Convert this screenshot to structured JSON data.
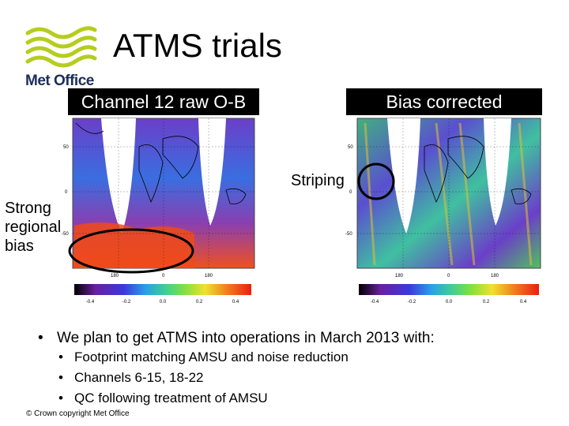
{
  "title": "ATMS trials",
  "logo": {
    "text": "Met Office"
  },
  "panels": {
    "left_label": "Channel 12 raw O-B",
    "right_label": "Bias corrected"
  },
  "map": {
    "lat_labels": [
      "50",
      "0",
      "-50"
    ],
    "lon_labels": [
      "180",
      "0",
      "180"
    ],
    "colorbar_ticks": [
      "-0.4",
      "-0.2",
      "0.0",
      "0.2",
      "0.4"
    ],
    "colorbar_colors": [
      "#000000",
      "#6a1fa0",
      "#3a3ad8",
      "#2a8ee8",
      "#30c0d8",
      "#40d090",
      "#60d040",
      "#c0e040",
      "#f0e030",
      "#f0a020",
      "#f06020",
      "#e82010"
    ]
  },
  "annotations": {
    "striping": "Striping",
    "regional_lines": [
      "Strong",
      "regional",
      "bias"
    ]
  },
  "bullets": {
    "main": "We plan to get ATMS into operations in March 2013 with:",
    "sub": [
      "Footprint matching AMSU and noise reduction",
      "Channels 6-15, 18-22",
      "QC following treatment of AMSU"
    ]
  },
  "footer": "© Crown copyright   Met Office"
}
